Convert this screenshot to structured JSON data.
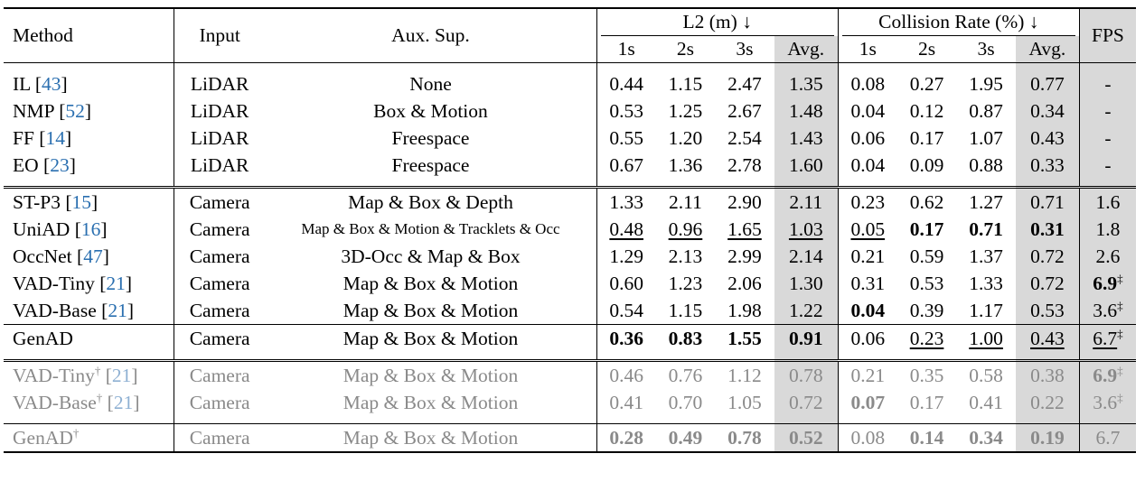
{
  "caption_fragment": "",
  "header": {
    "method": "Method",
    "input": "Input",
    "aux": "Aux. Sup.",
    "l2_group": "L2 (m) ↓",
    "col_group": "Collision Rate (%) ↓",
    "fps": "FPS",
    "sub": [
      "1s",
      "2s",
      "3s",
      "Avg.",
      "1s",
      "2s",
      "3s",
      "Avg."
    ]
  },
  "groups": [
    {
      "style": "normal",
      "rows": [
        {
          "name": "IL",
          "cite": "43",
          "dagger": false,
          "input": "LiDAR",
          "aux": "None",
          "l2": [
            "0.44",
            "1.15",
            "2.47",
            "1.35"
          ],
          "col": [
            "0.08",
            "0.27",
            "1.95",
            "0.77"
          ],
          "fps": "-",
          "fps_mark": ""
        },
        {
          "name": "NMP",
          "cite": "52",
          "dagger": false,
          "input": "LiDAR",
          "aux": "Box & Motion",
          "l2": [
            "0.53",
            "1.25",
            "2.67",
            "1.48"
          ],
          "col": [
            "0.04",
            "0.12",
            "0.87",
            "0.34"
          ],
          "fps": "-",
          "fps_mark": ""
        },
        {
          "name": "FF",
          "cite": "14",
          "dagger": false,
          "input": "LiDAR",
          "aux": "Freespace",
          "l2": [
            "0.55",
            "1.20",
            "2.54",
            "1.43"
          ],
          "col": [
            "0.06",
            "0.17",
            "1.07",
            "0.43"
          ],
          "fps": "-",
          "fps_mark": ""
        },
        {
          "name": "EO",
          "cite": "23",
          "dagger": false,
          "input": "LiDAR",
          "aux": "Freespace",
          "l2": [
            "0.67",
            "1.36",
            "2.78",
            "1.60"
          ],
          "col": [
            "0.04",
            "0.09",
            "0.88",
            "0.33"
          ],
          "fps": "-",
          "fps_mark": ""
        }
      ]
    },
    {
      "style": "normal",
      "rows": [
        {
          "name": "ST-P3",
          "cite": "15",
          "dagger": false,
          "input": "Camera",
          "aux": "Map & Box & Depth",
          "l2": [
            "1.33",
            "2.11",
            "2.90",
            "2.11"
          ],
          "col": [
            "0.23",
            "0.62",
            "1.27",
            "0.71"
          ],
          "fps": "1.6",
          "fps_mark": ""
        },
        {
          "name": "UniAD",
          "cite": "16",
          "dagger": false,
          "input": "Camera",
          "aux": "Map & Box & Motion & Tracklets & Occ",
          "aux_small": true,
          "l2": [
            "0.48",
            "0.96",
            "1.65",
            "1.03"
          ],
          "col": [
            "0.05",
            "0.17",
            "0.71",
            "0.31"
          ],
          "fps": "1.8",
          "fps_mark": "",
          "underline": [
            "l2.0",
            "l2.1",
            "l2.2",
            "l2.3",
            "col.0"
          ],
          "bold": [
            "col.1",
            "col.2",
            "col.3"
          ]
        },
        {
          "name": "OccNet",
          "cite": "47",
          "dagger": false,
          "input": "Camera",
          "aux": "3D-Occ & Map & Box",
          "l2": [
            "1.29",
            "2.13",
            "2.99",
            "2.14"
          ],
          "col": [
            "0.21",
            "0.59",
            "1.37",
            "0.72"
          ],
          "fps": "2.6",
          "fps_mark": ""
        },
        {
          "name": "VAD-Tiny",
          "cite": "21",
          "dagger": false,
          "input": "Camera",
          "aux": "Map & Box & Motion",
          "l2": [
            "0.60",
            "1.23",
            "2.06",
            "1.30"
          ],
          "col": [
            "0.31",
            "0.53",
            "1.33",
            "0.72"
          ],
          "fps": "6.9",
          "fps_mark": "‡",
          "bold": [
            "fps"
          ]
        },
        {
          "name": "VAD-Base",
          "cite": "21",
          "dagger": false,
          "input": "Camera",
          "aux": "Map & Box & Motion",
          "l2": [
            "0.54",
            "1.15",
            "1.98",
            "1.22"
          ],
          "col": [
            "0.04",
            "0.39",
            "1.17",
            "0.53"
          ],
          "fps": "3.6",
          "fps_mark": "‡",
          "bold": [
            "col.0"
          ]
        }
      ]
    },
    {
      "style": "normal",
      "rows": [
        {
          "name": "GenAD",
          "cite": "",
          "dagger": false,
          "input": "Camera",
          "aux": "Map & Box & Motion",
          "l2": [
            "0.36",
            "0.83",
            "1.55",
            "0.91"
          ],
          "col": [
            "0.06",
            "0.23",
            "1.00",
            "0.43"
          ],
          "fps": "6.7",
          "fps_mark": "‡",
          "bold": [
            "l2.0",
            "l2.1",
            "l2.2",
            "l2.3"
          ],
          "underline": [
            "col.1",
            "col.2",
            "col.3",
            "fps"
          ]
        }
      ]
    },
    {
      "style": "gray",
      "rows": [
        {
          "name": "VAD-Tiny",
          "cite": "21",
          "dagger": true,
          "input": "Camera",
          "aux": "Map & Box & Motion",
          "l2": [
            "0.46",
            "0.76",
            "1.12",
            "0.78"
          ],
          "col": [
            "0.21",
            "0.35",
            "0.58",
            "0.38"
          ],
          "fps": "6.9",
          "fps_mark": "‡",
          "bold": [
            "fps"
          ]
        },
        {
          "name": "VAD-Base",
          "cite": "21",
          "dagger": true,
          "input": "Camera",
          "aux": "Map & Box & Motion",
          "l2": [
            "0.41",
            "0.70",
            "1.05",
            "0.72"
          ],
          "col": [
            "0.07",
            "0.17",
            "0.41",
            "0.22"
          ],
          "fps": "3.6",
          "fps_mark": "‡",
          "bold": [
            "col.0"
          ]
        }
      ]
    },
    {
      "style": "gray",
      "rows": [
        {
          "name": "GenAD",
          "cite": "",
          "dagger": true,
          "input": "Camera",
          "aux": "Map & Box & Motion",
          "l2": [
            "0.28",
            "0.49",
            "0.78",
            "0.52"
          ],
          "col": [
            "0.08",
            "0.14",
            "0.34",
            "0.19"
          ],
          "fps": "6.7",
          "fps_mark": "",
          "bold": [
            "l2.0",
            "l2.1",
            "l2.2",
            "l2.3",
            "col.1",
            "col.2",
            "col.3"
          ]
        }
      ]
    }
  ]
}
